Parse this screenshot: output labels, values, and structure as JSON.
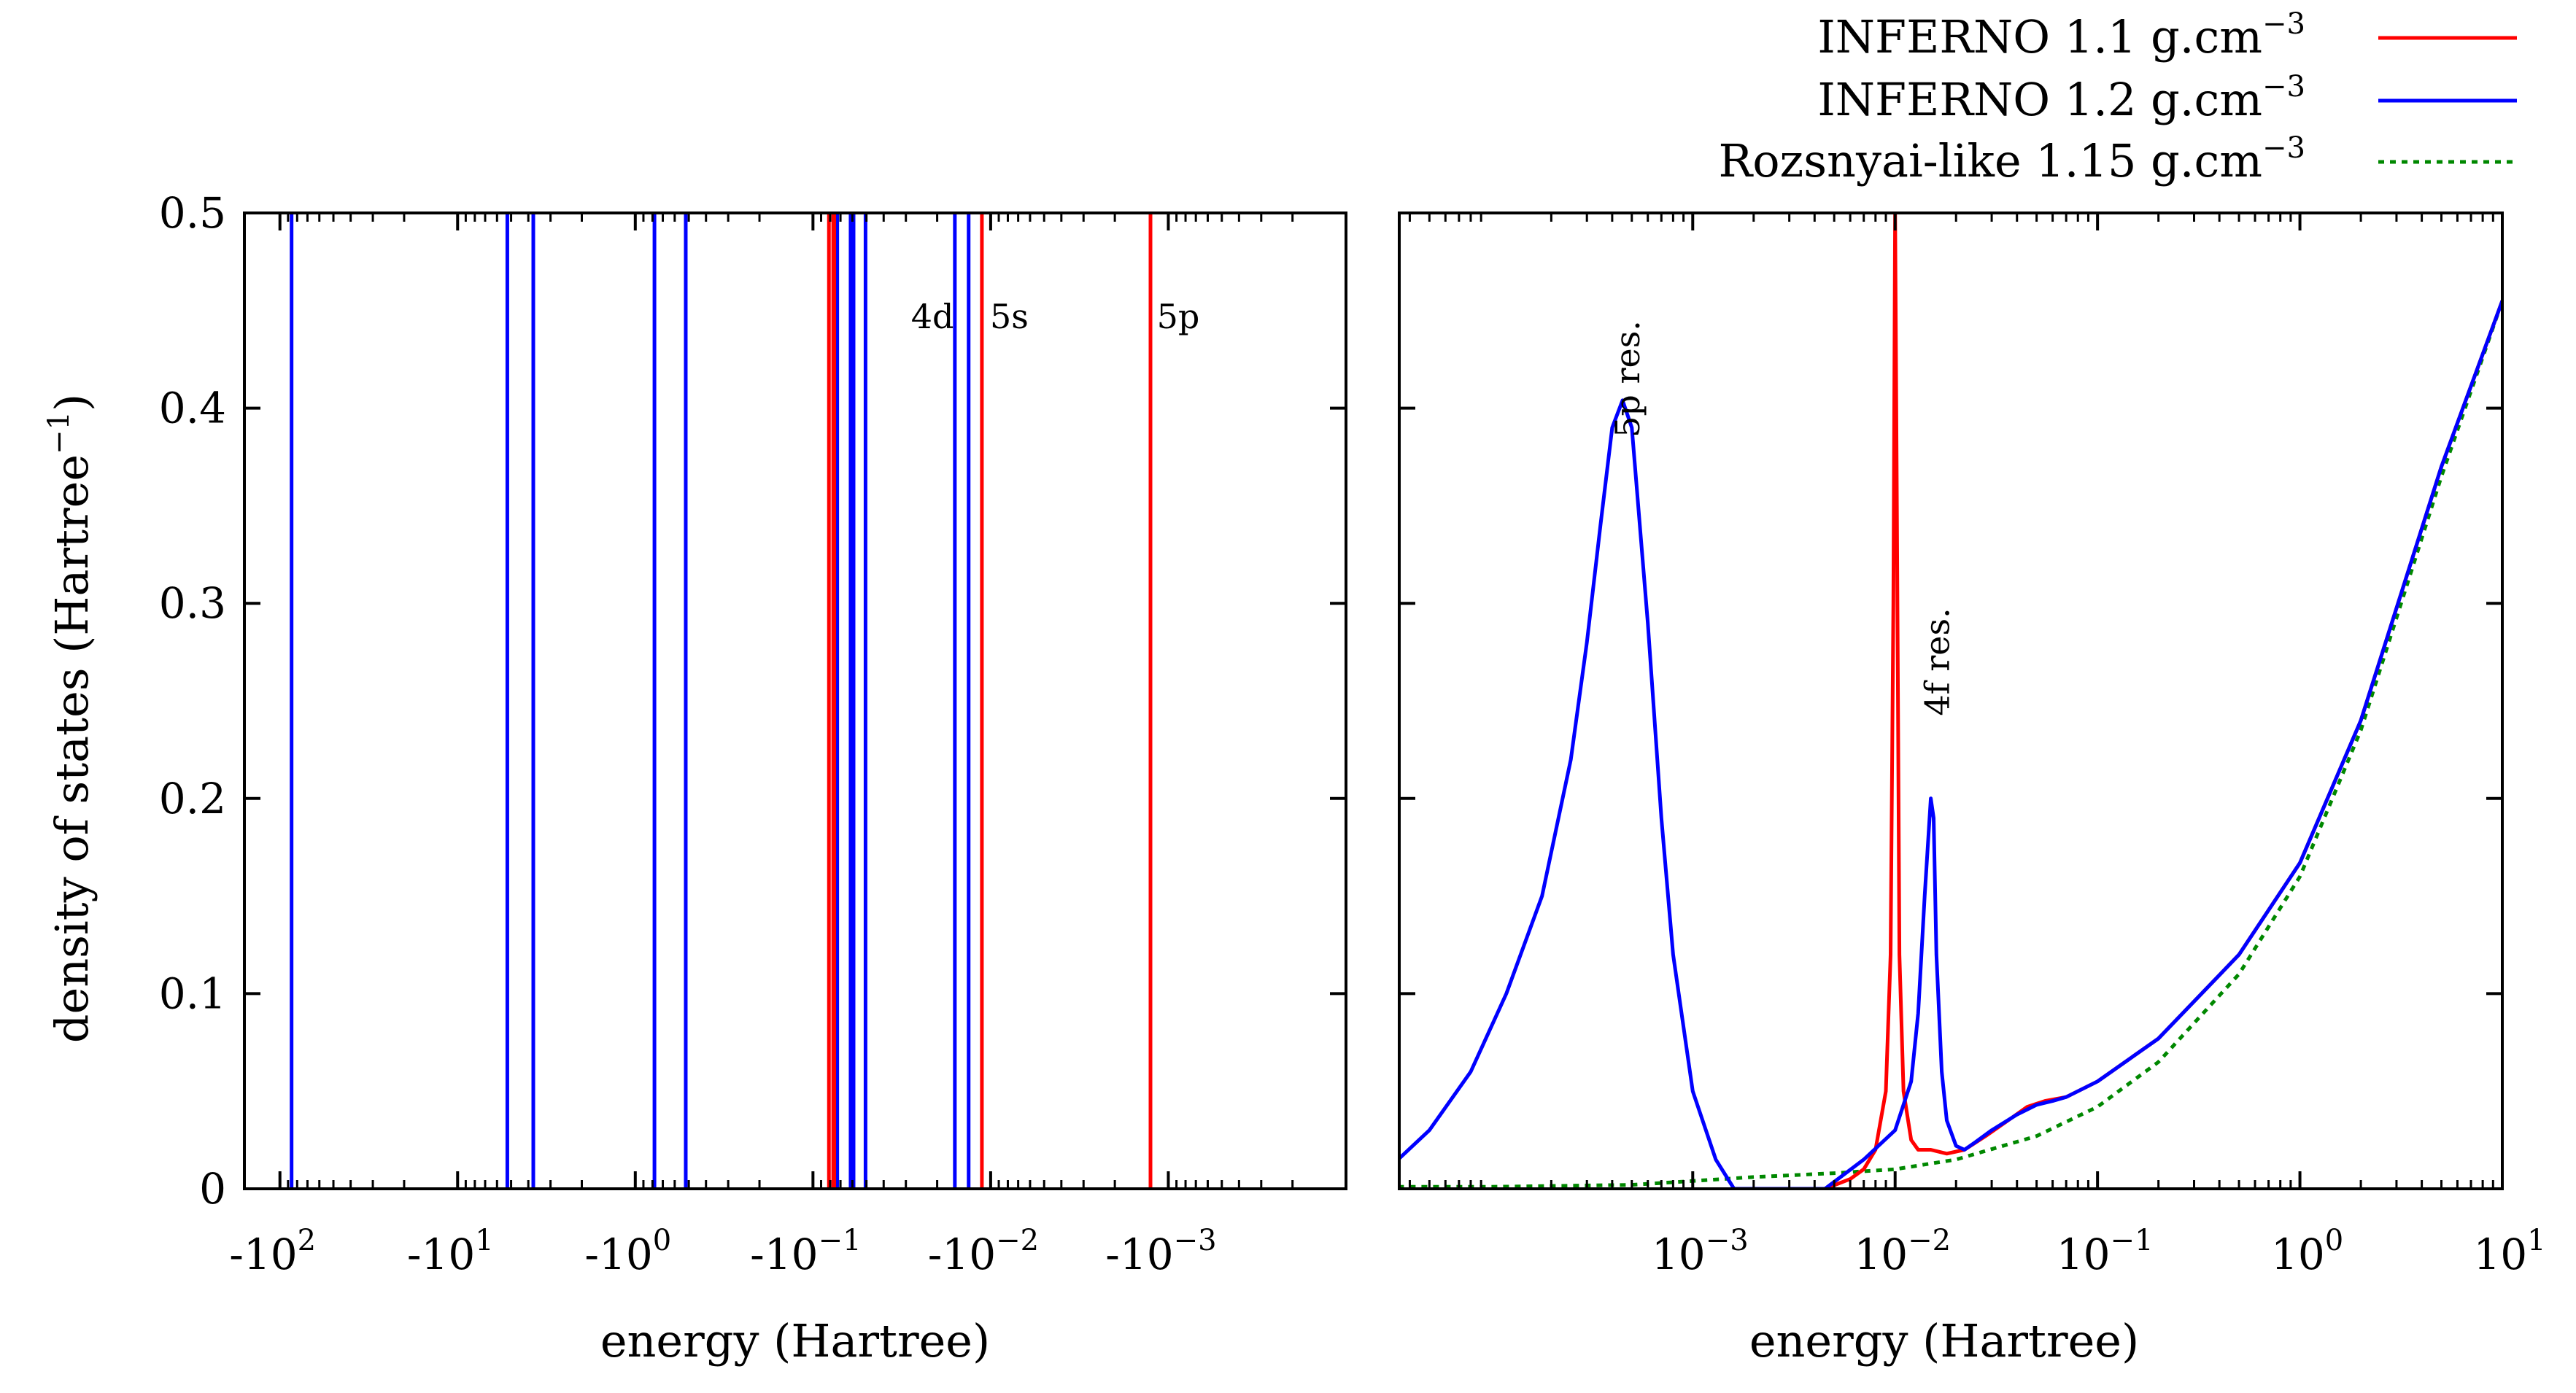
{
  "chart_data": [
    {
      "type": "line",
      "panel": "left",
      "description_axis": "bound-state energy levels (negative energies, log scale)",
      "xlabel": "energy (Hartree)",
      "ylabel": "density of states (Hartree",
      "ylabel_sup": "−1",
      "ylabel_close": ")",
      "ylim": [
        0,
        0.5
      ],
      "yticks": [
        {
          "value": 0,
          "label": "0"
        },
        {
          "value": 0.1,
          "label": "0.1"
        },
        {
          "value": 0.2,
          "label": "0.2"
        },
        {
          "value": 0.3,
          "label": "0.3"
        },
        {
          "value": 0.4,
          "label": "0.4"
        },
        {
          "value": 0.5,
          "label": "0.5"
        }
      ],
      "xticks": [
        {
          "exp": 2,
          "base": "-10",
          "sup": "2"
        },
        {
          "exp": 1,
          "base": "-10",
          "sup": "1"
        },
        {
          "exp": 0,
          "base": "-10",
          "sup": "0"
        },
        {
          "exp": -1,
          "base": "-10",
          "sup": "−1"
        },
        {
          "exp": -2,
          "base": "-10",
          "sup": "−2"
        },
        {
          "exp": -3,
          "base": "-10",
          "sup": "−3"
        }
      ],
      "xlog_range": [
        2.2,
        -4.0
      ],
      "levels_series1": [
        0.0813,
        0.0769,
        0.0759,
        0.0112,
        0.00126
      ],
      "levels_series2": [
        86,
        5.25,
        3.75,
        0.78,
        0.52,
        0.0745,
        0.073,
        0.0614,
        0.0591,
        0.0506,
        0.0159,
        0.0133
      ],
      "annotations": [
        {
          "text": "4d",
          "at": 0.0115
        },
        {
          "text": "5s",
          "at": 0.0126
        },
        {
          "text": "5p",
          "at": 0.00126
        }
      ]
    },
    {
      "type": "line",
      "panel": "right",
      "description_axis": "continuum density of states (positive energies, log scale)",
      "xlabel": "energy (Hartree)",
      "xscale": "log",
      "xlog_range": [
        -4.45,
        1.0
      ],
      "ylim": [
        0,
        0.5
      ],
      "xticks": [
        {
          "exp": -3,
          "base": "10",
          "sup": "−3"
        },
        {
          "exp": -2,
          "base": "10",
          "sup": "−2"
        },
        {
          "exp": -1,
          "base": "10",
          "sup": "−1"
        },
        {
          "exp": 0,
          "base": "10",
          "sup": "0"
        },
        {
          "exp": 1,
          "base": "10",
          "sup": "1"
        }
      ],
      "series": [
        {
          "name": "INFERNO 1.1 g.cm",
          "sup": "−3",
          "color": "#ff0000",
          "dash": "none",
          "x": [
            0.0045,
            0.006,
            0.007,
            0.008,
            0.009,
            0.0095,
            0.0098,
            0.01,
            0.0102,
            0.0105,
            0.011,
            0.012,
            0.013,
            0.015,
            0.018,
            0.022,
            0.028,
            0.035,
            0.045,
            0.055,
            0.07,
            0.1,
            0.2,
            0.5,
            1,
            2,
            5,
            10
          ],
          "values": [
            0,
            0.005,
            0.01,
            0.02,
            0.05,
            0.12,
            0.3,
            0.5,
            0.35,
            0.12,
            0.05,
            0.025,
            0.02,
            0.02,
            0.018,
            0.02,
            0.027,
            0.034,
            0.042,
            0.045,
            0.047,
            0.055,
            0.077,
            0.12,
            0.167,
            0.24,
            0.37,
            0.455
          ]
        },
        {
          "name": "INFERNO 1.2 g.cm",
          "sup": "−3",
          "color": "#0000ff",
          "dash": "none",
          "x": [
            3.5e-05,
            5e-05,
            8e-05,
            0.00012,
            0.00018,
            0.00025,
            0.0003,
            0.00035,
            0.0004,
            0.00045,
            0.0005,
            0.0006,
            0.0007,
            0.0008,
            0.001,
            0.0013,
            0.0016,
            0.0045,
            0.007,
            0.01,
            0.012,
            0.013,
            0.014,
            0.015,
            0.0155,
            0.016,
            0.017,
            0.018,
            0.02,
            0.022,
            0.025,
            0.03,
            0.04,
            0.05,
            0.06,
            0.07,
            0.1,
            0.2,
            0.5,
            1,
            2,
            5,
            10
          ],
          "values": [
            0.015,
            0.03,
            0.06,
            0.1,
            0.15,
            0.22,
            0.28,
            0.34,
            0.39,
            0.404,
            0.39,
            0.29,
            0.19,
            0.12,
            0.05,
            0.015,
            0,
            0,
            0.015,
            0.03,
            0.055,
            0.09,
            0.15,
            0.2,
            0.19,
            0.12,
            0.06,
            0.035,
            0.022,
            0.02,
            0.024,
            0.03,
            0.038,
            0.043,
            0.045,
            0.047,
            0.055,
            0.077,
            0.12,
            0.167,
            0.24,
            0.37,
            0.455
          ]
        },
        {
          "name": "Rozsnyai-like 1.15 g.cm",
          "sup": "−3",
          "color": "#008800",
          "dash": "dotted",
          "x": [
            3.5e-05,
            0.0001,
            0.0005,
            0.001,
            0.002,
            0.005,
            0.01,
            0.02,
            0.05,
            0.1,
            0.2,
            0.5,
            1,
            2,
            5,
            10
          ],
          "values": [
            0.001,
            0.001,
            0.002,
            0.004,
            0.006,
            0.008,
            0.01,
            0.015,
            0.027,
            0.042,
            0.065,
            0.11,
            0.16,
            0.235,
            0.365,
            0.455
          ]
        }
      ],
      "annotations": [
        {
          "text": "5p res.",
          "x": 0.0005,
          "y": 0.415
        },
        {
          "text": "4f res.",
          "x": 0.017,
          "y": 0.27
        }
      ]
    }
  ]
}
